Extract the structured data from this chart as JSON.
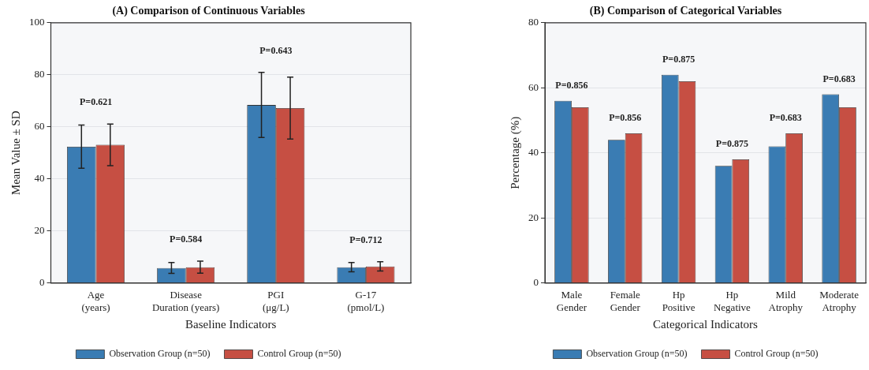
{
  "chart_data": [
    {
      "type": "bar",
      "title": "(A) Comparison of Continuous Variables",
      "xlabel": "Baseline Indicators",
      "ylabel": "Mean Value ± SD",
      "categories": [
        "Age\n(years)",
        "Disease\nDuration (years)",
        "PGI\n(μg/L)",
        "G-17\n(pmol/L)"
      ],
      "series": [
        {
          "name": "Observation Group (n=50)",
          "color": "#3a7cb3",
          "values": [
            52.4,
            5.8,
            68.4,
            6.1
          ],
          "errors": [
            8.3,
            2.1,
            12.5,
            1.8
          ]
        },
        {
          "name": "Control Group (n=50)",
          "color": "#c64f43",
          "values": [
            53.1,
            6.1,
            67.2,
            6.4
          ],
          "errors": [
            8,
            2.3,
            11.9,
            1.8
          ]
        }
      ],
      "ylim": [
        0,
        100
      ],
      "yticks": [
        0,
        20,
        40,
        60,
        80,
        100
      ],
      "grid": "y",
      "legend": "bottom",
      "annotations": [
        "P=0.621",
        "P=0.584",
        "P=0.643",
        "P=0.712"
      ]
    },
    {
      "type": "bar",
      "title": "(B) Comparison of Categorical Variables",
      "xlabel": "Categorical Indicators",
      "ylabel": "Percentage (%)",
      "categories": [
        "Male\nGender",
        "Female\nGender",
        "Hp\nPositive",
        "Hp\nNegative",
        "Mild\nAtrophy",
        "Moderate\nAtrophy"
      ],
      "series": [
        {
          "name": "Observation Group (n=50)",
          "color": "#3a7cb3",
          "values": [
            56,
            44,
            64,
            36,
            42,
            58
          ]
        },
        {
          "name": "Control Group (n=50)",
          "color": "#c64f43",
          "values": [
            54,
            46,
            62,
            38,
            46,
            54
          ]
        }
      ],
      "ylim": [
        0,
        80
      ],
      "yticks": [
        0,
        20,
        40,
        60,
        80
      ],
      "grid": "y",
      "legend": "bottom",
      "annotations": [
        "P=0.856",
        "P=0.856",
        "P=0.875",
        "P=0.875",
        "P=0.683",
        "P=0.683"
      ]
    }
  ]
}
